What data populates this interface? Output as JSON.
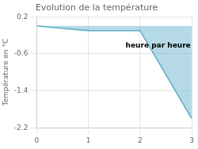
{
  "chart_data": {
    "type": "area",
    "title": "Evolution de la température",
    "y_label": "Température en °C",
    "x": [
      0,
      1,
      2,
      3
    ],
    "values": [
      0.0,
      -0.1,
      -0.1,
      -2.0
    ],
    "color": "#5aaec8",
    "xlim": [
      0,
      3
    ],
    "ylim": [
      -2.2,
      0.2
    ],
    "xticks": [
      0,
      1,
      2,
      3
    ],
    "yticks": [
      0.2,
      -0.6,
      -1.4,
      -2.2
    ],
    "grid": true,
    "annotations": [
      {
        "text": "heure par heure",
        "x": 2.35,
        "y": -0.42
      }
    ]
  }
}
